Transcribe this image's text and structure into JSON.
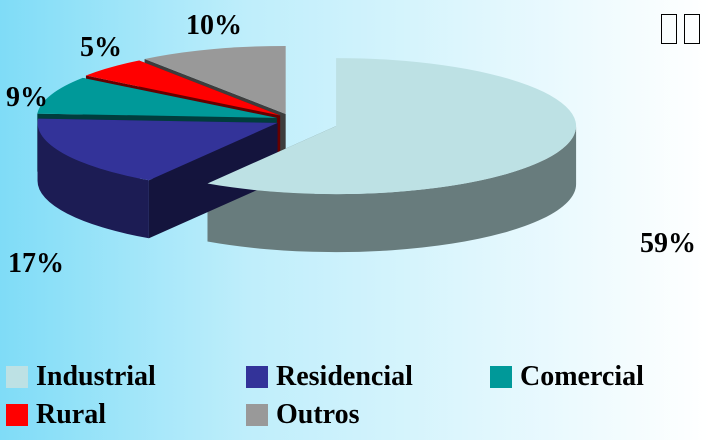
{
  "chart_data": {
    "type": "pie",
    "style": "3d-exploded",
    "slices": [
      {
        "name": "Industrial",
        "value": 59,
        "label": "59%",
        "color": "#bde1e4"
      },
      {
        "name": "Residencial",
        "value": 17,
        "label": "17%",
        "color": "#333399"
      },
      {
        "name": "Comercial",
        "value": 9,
        "label": "9%",
        "color": "#009999"
      },
      {
        "name": "Rural",
        "value": 5,
        "label": "5%",
        "color": "#ff0000"
      },
      {
        "name": "Outros",
        "value": 10,
        "label": "10%",
        "color": "#999999"
      }
    ],
    "legend_position": "bottom"
  }
}
